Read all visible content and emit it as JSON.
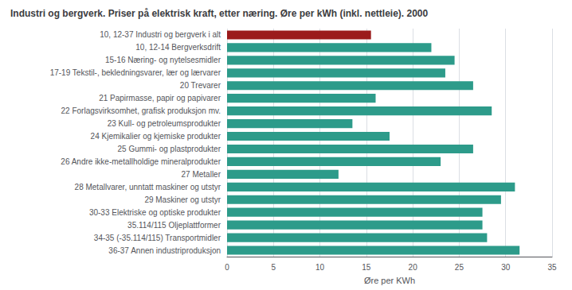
{
  "chart_data": {
    "type": "bar",
    "title": "Industri og bergverk. Priser på elektrisk kraft, etter næring. Øre per kWh (inkl. nettleie). 2000",
    "xlabel": "Øre per KWh",
    "orientation": "horizontal",
    "categories": [
      "10, 12-37 Industri og bergverk i alt",
      "10, 12-14 Bergverksdrift",
      "15-16 Næring- og nytelsesmidler",
      "17-19 Tekstil-, bekledningsvarer, lær og lærvarer",
      "20 Trevarer",
      "21 Papirmasse, papir og papivarer",
      "22 Forlagsvirksomhet, grafisk produksjon mv.",
      "23 Kull- og petroleumsprodukter",
      "24 Kjemikalier og kjemiske produkter",
      "25 Gummi- og plastprodukter",
      "26 Andre ikke-metallholdige mineralprodukter",
      "27 Metaller",
      "28 Metallvarer, unntatt maskiner og utstyr",
      "29 Maskiner og utstyr",
      "30-33 Elektriske og optiske produkter",
      "35.114/115 Oljeplattformer",
      "34-35 (-35.114/115) Transportmidler",
      "36-37 Annen industriproduksjon"
    ],
    "values": [
      15.5,
      22.0,
      24.5,
      23.5,
      26.5,
      16.0,
      28.5,
      13.5,
      17.5,
      26.5,
      23.0,
      12.0,
      31.0,
      29.5,
      27.5,
      27.5,
      28.0,
      31.5
    ],
    "colors": [
      "#9B1B1B",
      "#2D9B8A",
      "#2D9B8A",
      "#2D9B8A",
      "#2D9B8A",
      "#2D9B8A",
      "#2D9B8A",
      "#2D9B8A",
      "#2D9B8A",
      "#2D9B8A",
      "#2D9B8A",
      "#2D9B8A",
      "#2D9B8A",
      "#2D9B8A",
      "#2D9B8A",
      "#2D9B8A",
      "#2D9B8A",
      "#2D9B8A"
    ],
    "xlim": [
      0,
      35
    ],
    "xticks": [
      0,
      5,
      10,
      15,
      20,
      25,
      30,
      35
    ],
    "grid": true
  }
}
